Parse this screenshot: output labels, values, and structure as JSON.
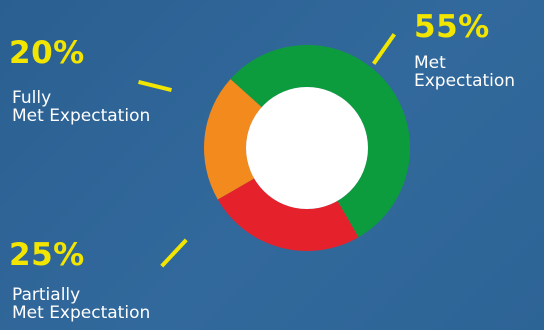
{
  "chart_data": {
    "type": "pie",
    "title": "",
    "categories": [
      "Met Expectation",
      "Partially Met Expectation",
      "Fully Met Expectation"
    ],
    "values": [
      55,
      25,
      20
    ],
    "slices": [
      {
        "percent_label": "55%",
        "label_lines": [
          "Met",
          "Expectation"
        ],
        "value": 55,
        "color": "#0d9c3d"
      },
      {
        "percent_label": "25%",
        "label_lines": [
          "Partially",
          "Met Expectation"
        ],
        "value": 25,
        "color": "#e5212b"
      },
      {
        "percent_label": "20%",
        "label_lines": [
          "Fully",
          "Met Expectation"
        ],
        "value": 20,
        "color": "#f28a1d"
      }
    ],
    "donut": true,
    "legend": "none",
    "grid": false
  },
  "colors": {
    "background": "#2f6799",
    "accent": "#f2e600",
    "center": "#ffffff"
  }
}
